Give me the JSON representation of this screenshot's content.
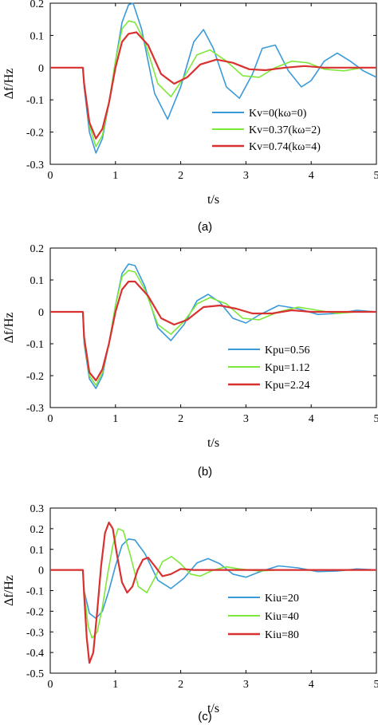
{
  "chart_data": [
    {
      "type": "line",
      "caption": "(a)",
      "xlabel": "t/s",
      "ylabel": "Δf/Hz",
      "xlim": [
        0,
        5
      ],
      "ylim": [
        -0.3,
        0.2
      ],
      "xticks": [
        "0",
        "1",
        "2",
        "3",
        "4",
        "5"
      ],
      "yticks": [
        "-0.3",
        "-0.2",
        "-0.1",
        "0",
        "0.1",
        "0.2"
      ],
      "legend_position": "lower-right",
      "series": [
        {
          "name": "Kv=0(kω=0)",
          "color": "#3a9ad9",
          "x": [
            0,
            0.5,
            0.52,
            0.6,
            0.7,
            0.8,
            0.9,
            1.0,
            1.1,
            1.2,
            1.27,
            1.4,
            1.6,
            1.8,
            2.0,
            2.2,
            2.35,
            2.5,
            2.7,
            2.9,
            3.1,
            3.25,
            3.45,
            3.65,
            3.85,
            4.0,
            4.2,
            4.4,
            4.6,
            4.8,
            5.0
          ],
          "y": [
            0,
            0,
            -0.06,
            -0.2,
            -0.265,
            -0.22,
            -0.11,
            0.02,
            0.14,
            0.195,
            0.2,
            0.12,
            -0.08,
            -0.16,
            -0.06,
            0.08,
            0.118,
            0.06,
            -0.06,
            -0.095,
            -0.02,
            0.06,
            0.07,
            -0.01,
            -0.06,
            -0.04,
            0.02,
            0.045,
            0.02,
            -0.01,
            -0.03
          ]
        },
        {
          "name": "Kv=0.37(kω=2)",
          "color": "#7de83a",
          "x": [
            0,
            0.5,
            0.52,
            0.6,
            0.7,
            0.8,
            0.9,
            1.0,
            1.1,
            1.2,
            1.3,
            1.45,
            1.65,
            1.85,
            2.05,
            2.25,
            2.45,
            2.7,
            2.95,
            3.2,
            3.45,
            3.7,
            3.95,
            4.2,
            4.5,
            4.8,
            5.0
          ],
          "y": [
            0,
            0,
            -0.05,
            -0.18,
            -0.245,
            -0.21,
            -0.11,
            0.02,
            0.12,
            0.145,
            0.14,
            0.08,
            -0.05,
            -0.09,
            -0.03,
            0.04,
            0.055,
            0.02,
            -0.025,
            -0.03,
            0.0,
            0.02,
            0.015,
            -0.005,
            -0.01,
            0.0,
            0.0
          ]
        },
        {
          "name": "Kv=0.74(kω=4)",
          "color": "#d93030",
          "x": [
            0,
            0.5,
            0.52,
            0.6,
            0.7,
            0.8,
            0.9,
            1.0,
            1.1,
            1.2,
            1.32,
            1.5,
            1.7,
            1.9,
            2.1,
            2.3,
            2.55,
            2.8,
            3.05,
            3.3,
            3.6,
            3.9,
            4.2,
            4.6,
            5.0
          ],
          "y": [
            0,
            0,
            -0.05,
            -0.17,
            -0.22,
            -0.19,
            -0.11,
            0.0,
            0.08,
            0.105,
            0.11,
            0.07,
            -0.02,
            -0.05,
            -0.03,
            0.01,
            0.025,
            0.015,
            -0.005,
            -0.008,
            0.0,
            0.005,
            0.0,
            0.0,
            0.0
          ]
        }
      ]
    },
    {
      "type": "line",
      "caption": "(b)",
      "xlabel": "t/s",
      "ylabel": "Δf/Hz",
      "xlim": [
        0,
        5
      ],
      "ylim": [
        -0.3,
        0.2
      ],
      "xticks": [
        "0",
        "1",
        "2",
        "3",
        "4",
        "5"
      ],
      "yticks": [
        "-0.3",
        "-0.2",
        "-0.1",
        "0",
        "0.1",
        "0.2"
      ],
      "legend_position": "lower-right",
      "series": [
        {
          "name": "Kpu=0.56",
          "color": "#3a9ad9",
          "x": [
            0,
            0.5,
            0.52,
            0.6,
            0.7,
            0.8,
            0.9,
            1.0,
            1.1,
            1.2,
            1.3,
            1.45,
            1.65,
            1.85,
            2.05,
            2.25,
            2.42,
            2.6,
            2.8,
            3.0,
            3.2,
            3.5,
            3.8,
            4.1,
            4.4,
            4.7,
            5.0
          ],
          "y": [
            0,
            0,
            -0.1,
            -0.21,
            -0.24,
            -0.2,
            -0.1,
            0.02,
            0.12,
            0.15,
            0.145,
            0.08,
            -0.05,
            -0.09,
            -0.04,
            0.035,
            0.055,
            0.03,
            -0.02,
            -0.035,
            -0.01,
            0.02,
            0.01,
            -0.008,
            -0.005,
            0.005,
            0.0
          ]
        },
        {
          "name": "Kpu=1.12",
          "color": "#7de83a",
          "x": [
            0,
            0.5,
            0.52,
            0.6,
            0.7,
            0.8,
            0.9,
            1.0,
            1.1,
            1.2,
            1.3,
            1.45,
            1.65,
            1.85,
            2.05,
            2.25,
            2.45,
            2.7,
            2.95,
            3.2,
            3.5,
            3.8,
            4.1,
            4.4,
            4.7,
            5.0
          ],
          "y": [
            0,
            0,
            -0.09,
            -0.2,
            -0.23,
            -0.19,
            -0.1,
            0.02,
            0.11,
            0.13,
            0.125,
            0.07,
            -0.04,
            -0.07,
            -0.03,
            0.025,
            0.045,
            0.025,
            -0.02,
            -0.025,
            0.0,
            0.015,
            0.005,
            -0.005,
            0.0,
            0.0
          ]
        },
        {
          "name": "Kpu=2.24",
          "color": "#d93030",
          "x": [
            0,
            0.5,
            0.52,
            0.6,
            0.7,
            0.8,
            0.9,
            1.0,
            1.1,
            1.2,
            1.3,
            1.5,
            1.7,
            1.9,
            2.1,
            2.35,
            2.6,
            2.85,
            3.1,
            3.4,
            3.7,
            4.0,
            4.4,
            5.0
          ],
          "y": [
            0,
            0,
            -0.08,
            -0.19,
            -0.215,
            -0.18,
            -0.1,
            0.0,
            0.07,
            0.095,
            0.095,
            0.05,
            -0.02,
            -0.04,
            -0.025,
            0.015,
            0.02,
            0.01,
            -0.005,
            -0.005,
            0.005,
            0.0,
            0.0,
            0.0
          ]
        }
      ]
    },
    {
      "type": "line",
      "caption": "(c)",
      "xlabel": "t/s",
      "ylabel": "Δf/Hz",
      "xlim": [
        0,
        5
      ],
      "ylim": [
        -0.5,
        0.3
      ],
      "xticks": [
        "0",
        "1",
        "2",
        "3",
        "4",
        "5"
      ],
      "yticks": [
        "-0.5",
        "-0.4",
        "-0.3",
        "-0.2",
        "-0.1",
        "0",
        "0.1",
        "0.2",
        "0.3"
      ],
      "legend_position": "lower-right",
      "series": [
        {
          "name": "Kiu=20",
          "color": "#3a9ad9",
          "x": [
            0,
            0.5,
            0.52,
            0.6,
            0.7,
            0.8,
            0.9,
            1.0,
            1.1,
            1.2,
            1.3,
            1.45,
            1.65,
            1.85,
            2.05,
            2.25,
            2.42,
            2.6,
            2.8,
            3.0,
            3.2,
            3.5,
            3.8,
            4.1,
            4.4,
            4.7,
            5.0
          ],
          "y": [
            0,
            0,
            -0.1,
            -0.21,
            -0.235,
            -0.2,
            -0.1,
            0.02,
            0.12,
            0.15,
            0.145,
            0.08,
            -0.05,
            -0.09,
            -0.04,
            0.035,
            0.055,
            0.03,
            -0.02,
            -0.035,
            -0.01,
            0.02,
            0.01,
            -0.008,
            -0.005,
            0.005,
            0.0
          ]
        },
        {
          "name": "Kiu=40",
          "color": "#7de83a",
          "x": [
            0,
            0.5,
            0.52,
            0.58,
            0.64,
            0.72,
            0.8,
            0.88,
            0.96,
            1.04,
            1.12,
            1.22,
            1.35,
            1.48,
            1.6,
            1.72,
            1.86,
            2.0,
            2.15,
            2.3,
            2.5,
            2.7,
            2.9,
            3.2,
            3.5,
            4.0,
            5.0
          ],
          "y": [
            0,
            0,
            -0.1,
            -0.27,
            -0.33,
            -0.3,
            -0.18,
            -0.02,
            0.12,
            0.2,
            0.19,
            0.08,
            -0.08,
            -0.11,
            -0.04,
            0.04,
            0.065,
            0.03,
            -0.02,
            -0.03,
            0.0,
            0.015,
            0.005,
            -0.005,
            0.0,
            0.0,
            0.0
          ]
        },
        {
          "name": "Kiu=80",
          "color": "#d93030",
          "x": [
            0,
            0.5,
            0.52,
            0.56,
            0.6,
            0.66,
            0.72,
            0.78,
            0.84,
            0.9,
            0.96,
            1.02,
            1.1,
            1.18,
            1.26,
            1.34,
            1.42,
            1.5,
            1.6,
            1.72,
            1.85,
            2.0,
            2.2,
            2.5,
            3.0,
            5.0
          ],
          "y": [
            0,
            0,
            -0.12,
            -0.33,
            -0.45,
            -0.4,
            -0.2,
            0.02,
            0.18,
            0.23,
            0.2,
            0.08,
            -0.06,
            -0.11,
            -0.08,
            0.0,
            0.05,
            0.06,
            0.02,
            -0.03,
            -0.02,
            0.005,
            0.0,
            0.0,
            0.0,
            0.0
          ]
        }
      ]
    }
  ]
}
